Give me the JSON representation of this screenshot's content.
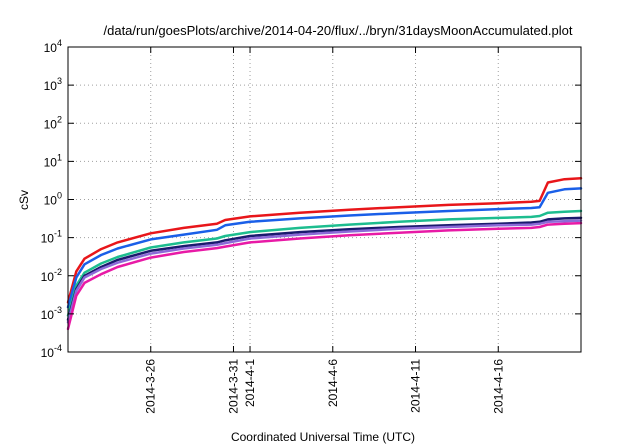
{
  "chart_data": {
    "type": "line",
    "title": "/data/run/goesPlots/archive/2014-04-20/flux/../bryn/31daysMoonAccumulated.plot",
    "xlabel": "Coordinated Universal Time (UTC)",
    "ylabel": "cSv",
    "y_scale": "log",
    "ylim": [
      0.0001,
      10000
    ],
    "xlim": [
      "2014-03-21",
      "2014-04-21"
    ],
    "grid": true,
    "legend": "none",
    "x_ticks": [
      "2014-3-26",
      "2014-3-31",
      "2014-4-1",
      "2014-4-6",
      "2014-4-11",
      "2014-4-16"
    ],
    "y_ticks": [
      {
        "value": 0.0001,
        "base": "10",
        "exp": "-4"
      },
      {
        "value": 0.001,
        "base": "10",
        "exp": "-3"
      },
      {
        "value": 0.01,
        "base": "10",
        "exp": "-2"
      },
      {
        "value": 0.1,
        "base": "10",
        "exp": "-1"
      },
      {
        "value": 1,
        "base": "10",
        "exp": "0"
      },
      {
        "value": 10,
        "base": "10",
        "exp": "1"
      },
      {
        "value": 100,
        "base": "10",
        "exp": "2"
      },
      {
        "value": 1000,
        "base": "10",
        "exp": "3"
      },
      {
        "value": 10000,
        "base": "10",
        "exp": "4"
      }
    ],
    "x": [
      "2014-03-21",
      "2014-03-21T12:00",
      "2014-03-22",
      "2014-03-23",
      "2014-03-24",
      "2014-03-26",
      "2014-03-28",
      "2014-03-30",
      "2014-03-30T12:00",
      "2014-04-01",
      "2014-04-04",
      "2014-04-07",
      "2014-04-10",
      "2014-04-13",
      "2014-04-16",
      "2014-04-18",
      "2014-04-18T12:00",
      "2014-04-19",
      "2014-04-20",
      "2014-04-21"
    ],
    "series": [
      {
        "color": "#e8161a",
        "values": [
          0.002,
          0.013,
          0.028,
          0.05,
          0.075,
          0.13,
          0.18,
          0.23,
          0.29,
          0.36,
          0.45,
          0.54,
          0.63,
          0.72,
          0.8,
          0.87,
          0.92,
          2.8,
          3.4,
          3.6
        ]
      },
      {
        "color": "#1a5fe8",
        "values": [
          0.0015,
          0.009,
          0.02,
          0.035,
          0.052,
          0.09,
          0.12,
          0.16,
          0.21,
          0.26,
          0.32,
          0.38,
          0.44,
          0.5,
          0.56,
          0.6,
          0.63,
          1.5,
          1.85,
          1.95
        ]
      },
      {
        "color": "#1dbd8f",
        "values": [
          0.0009,
          0.0055,
          0.012,
          0.021,
          0.031,
          0.055,
          0.075,
          0.095,
          0.11,
          0.14,
          0.18,
          0.22,
          0.26,
          0.3,
          0.33,
          0.35,
          0.37,
          0.45,
          0.48,
          0.5
        ]
      },
      {
        "color": "#1a1a6e",
        "values": [
          0.0007,
          0.0045,
          0.01,
          0.017,
          0.026,
          0.045,
          0.06,
          0.075,
          0.085,
          0.11,
          0.14,
          0.165,
          0.19,
          0.21,
          0.23,
          0.25,
          0.26,
          0.3,
          0.32,
          0.33
        ]
      },
      {
        "color": "#8c6ad8",
        "values": [
          0.0006,
          0.004,
          0.009,
          0.015,
          0.022,
          0.038,
          0.052,
          0.065,
          0.072,
          0.095,
          0.12,
          0.145,
          0.17,
          0.19,
          0.21,
          0.22,
          0.23,
          0.26,
          0.27,
          0.28
        ]
      },
      {
        "color": "#e81aa6",
        "values": [
          0.0004,
          0.003,
          0.0065,
          0.011,
          0.017,
          0.03,
          0.042,
          0.053,
          0.058,
          0.075,
          0.095,
          0.115,
          0.135,
          0.155,
          0.17,
          0.18,
          0.19,
          0.22,
          0.23,
          0.24
        ]
      }
    ]
  }
}
